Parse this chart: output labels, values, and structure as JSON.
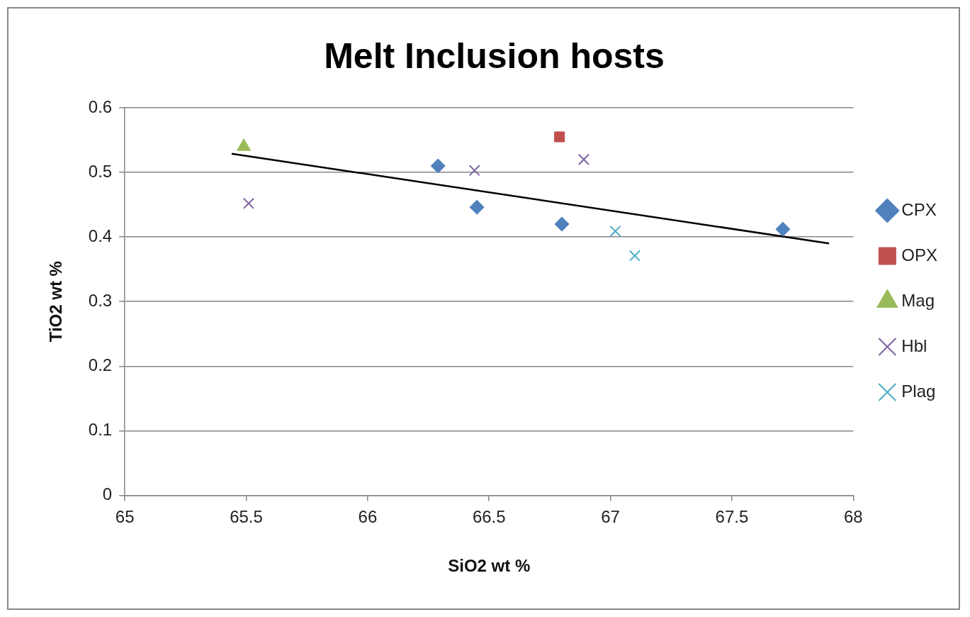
{
  "chart_data": {
    "type": "scatter",
    "title": "Melt Inclusion hosts",
    "xlabel": "SiO2 wt %",
    "ylabel": "TiO2 wt %",
    "xlim": [
      65,
      68
    ],
    "xticks": [
      65,
      65.5,
      66,
      66.5,
      67,
      67.5,
      68
    ],
    "ylim": [
      0,
      0.6
    ],
    "yticks": [
      0,
      0.1,
      0.2,
      0.3,
      0.4,
      0.5,
      0.6
    ],
    "grid": "y",
    "legend": "right",
    "series": [
      {
        "name": "CPX",
        "color": "#4f81bd",
        "marker": "diamond",
        "x": [
          66.29,
          66.45,
          66.8,
          67.71
        ],
        "values": [
          0.51,
          0.446,
          0.42,
          0.412
        ]
      },
      {
        "name": "OPX",
        "color": "#c0504d",
        "marker": "square",
        "x": [
          66.79
        ],
        "values": [
          0.555
        ]
      },
      {
        "name": "Mag",
        "color": "#9bbb59",
        "marker": "triangle",
        "x": [
          65.49
        ],
        "values": [
          0.54
        ]
      },
      {
        "name": "Hbl",
        "color": "#8064a2",
        "marker": "cross",
        "x": [
          65.51,
          66.44,
          66.89
        ],
        "values": [
          0.452,
          0.503,
          0.52
        ]
      },
      {
        "name": "Plag",
        "color": "#4bacc6",
        "marker": "cross",
        "x": [
          67.02,
          67.1
        ],
        "values": [
          0.409,
          0.371
        ]
      },
      {
        "type": "line",
        "color": "#000000",
        "marker": "none",
        "x": [
          65.44,
          67.9
        ],
        "values": [
          0.529,
          0.39
        ]
      }
    ]
  }
}
